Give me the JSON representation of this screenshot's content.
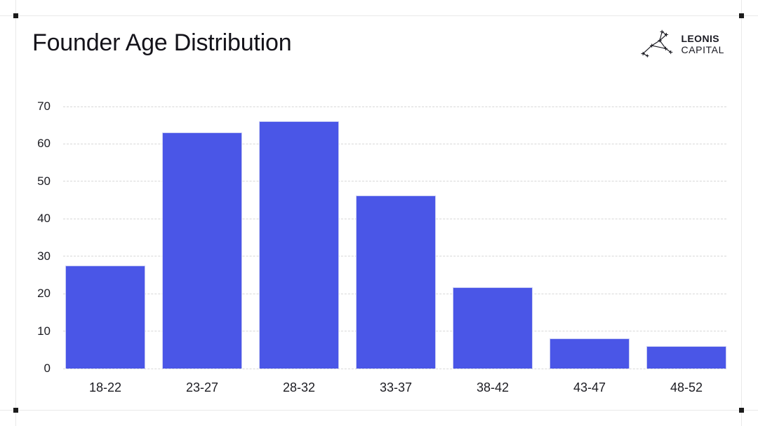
{
  "page": {
    "background": "#ffffff"
  },
  "brand": {
    "name_line1": "LEONIS",
    "name_line2": "CAPITAL",
    "logo_icon": "leo-constellation-icon",
    "text_color": "#1a1a22"
  },
  "frame": {
    "line_color": "#e9e9e9",
    "crop_mark_color": "#1b1b1b"
  },
  "chart_data": {
    "type": "bar",
    "title": "Founder Age Distribution",
    "categories": [
      "18-22",
      "23-27",
      "28-32",
      "33-37",
      "38-42",
      "43-47",
      "48-52"
    ],
    "values": [
      27.5,
      63,
      66,
      46.3,
      21.8,
      8,
      5.9
    ],
    "xlabel": "",
    "ylabel": "",
    "ylim": [
      0,
      70
    ],
    "yticks": [
      0,
      10,
      20,
      30,
      40,
      50,
      60,
      70
    ],
    "grid": "horizontal-dashed",
    "legend": "none",
    "bar_color": "#4a56e7",
    "bar_border_color": "#c9cdf3",
    "gridline_color": "#d8d8d8",
    "tick_label_color": "#1c1c22",
    "title_color": "#14131a"
  }
}
